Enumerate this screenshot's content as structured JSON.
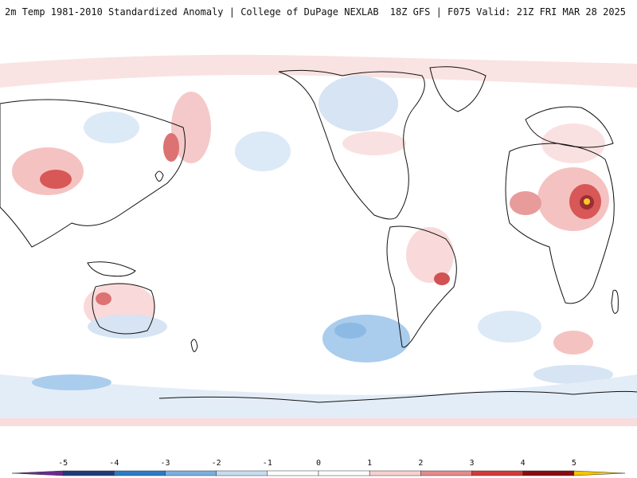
{
  "header": {
    "title": "2m Temp 1981-2010 Standardized Anomaly | College of DuPage NEXLAB",
    "run_info": "18Z GFS | F075 Valid: 21Z FRI MAR 28 2025"
  },
  "legend": {
    "tick_labels": [
      "-5",
      "-4",
      "-3",
      "-2",
      "-1",
      "0",
      "1",
      "2",
      "3",
      "4",
      "5"
    ],
    "colors": [
      "#6a2a8e",
      "#1f3a78",
      "#2b7bc6",
      "#79aee0",
      "#c6dcf0",
      "#ffffff",
      "#ffffff",
      "#f7d0d0",
      "#e58a8a",
      "#d23a3a",
      "#8b0a10",
      "#f6c500"
    ]
  },
  "map": {
    "background": "#ffffff",
    "coastline_color": "#111111"
  }
}
